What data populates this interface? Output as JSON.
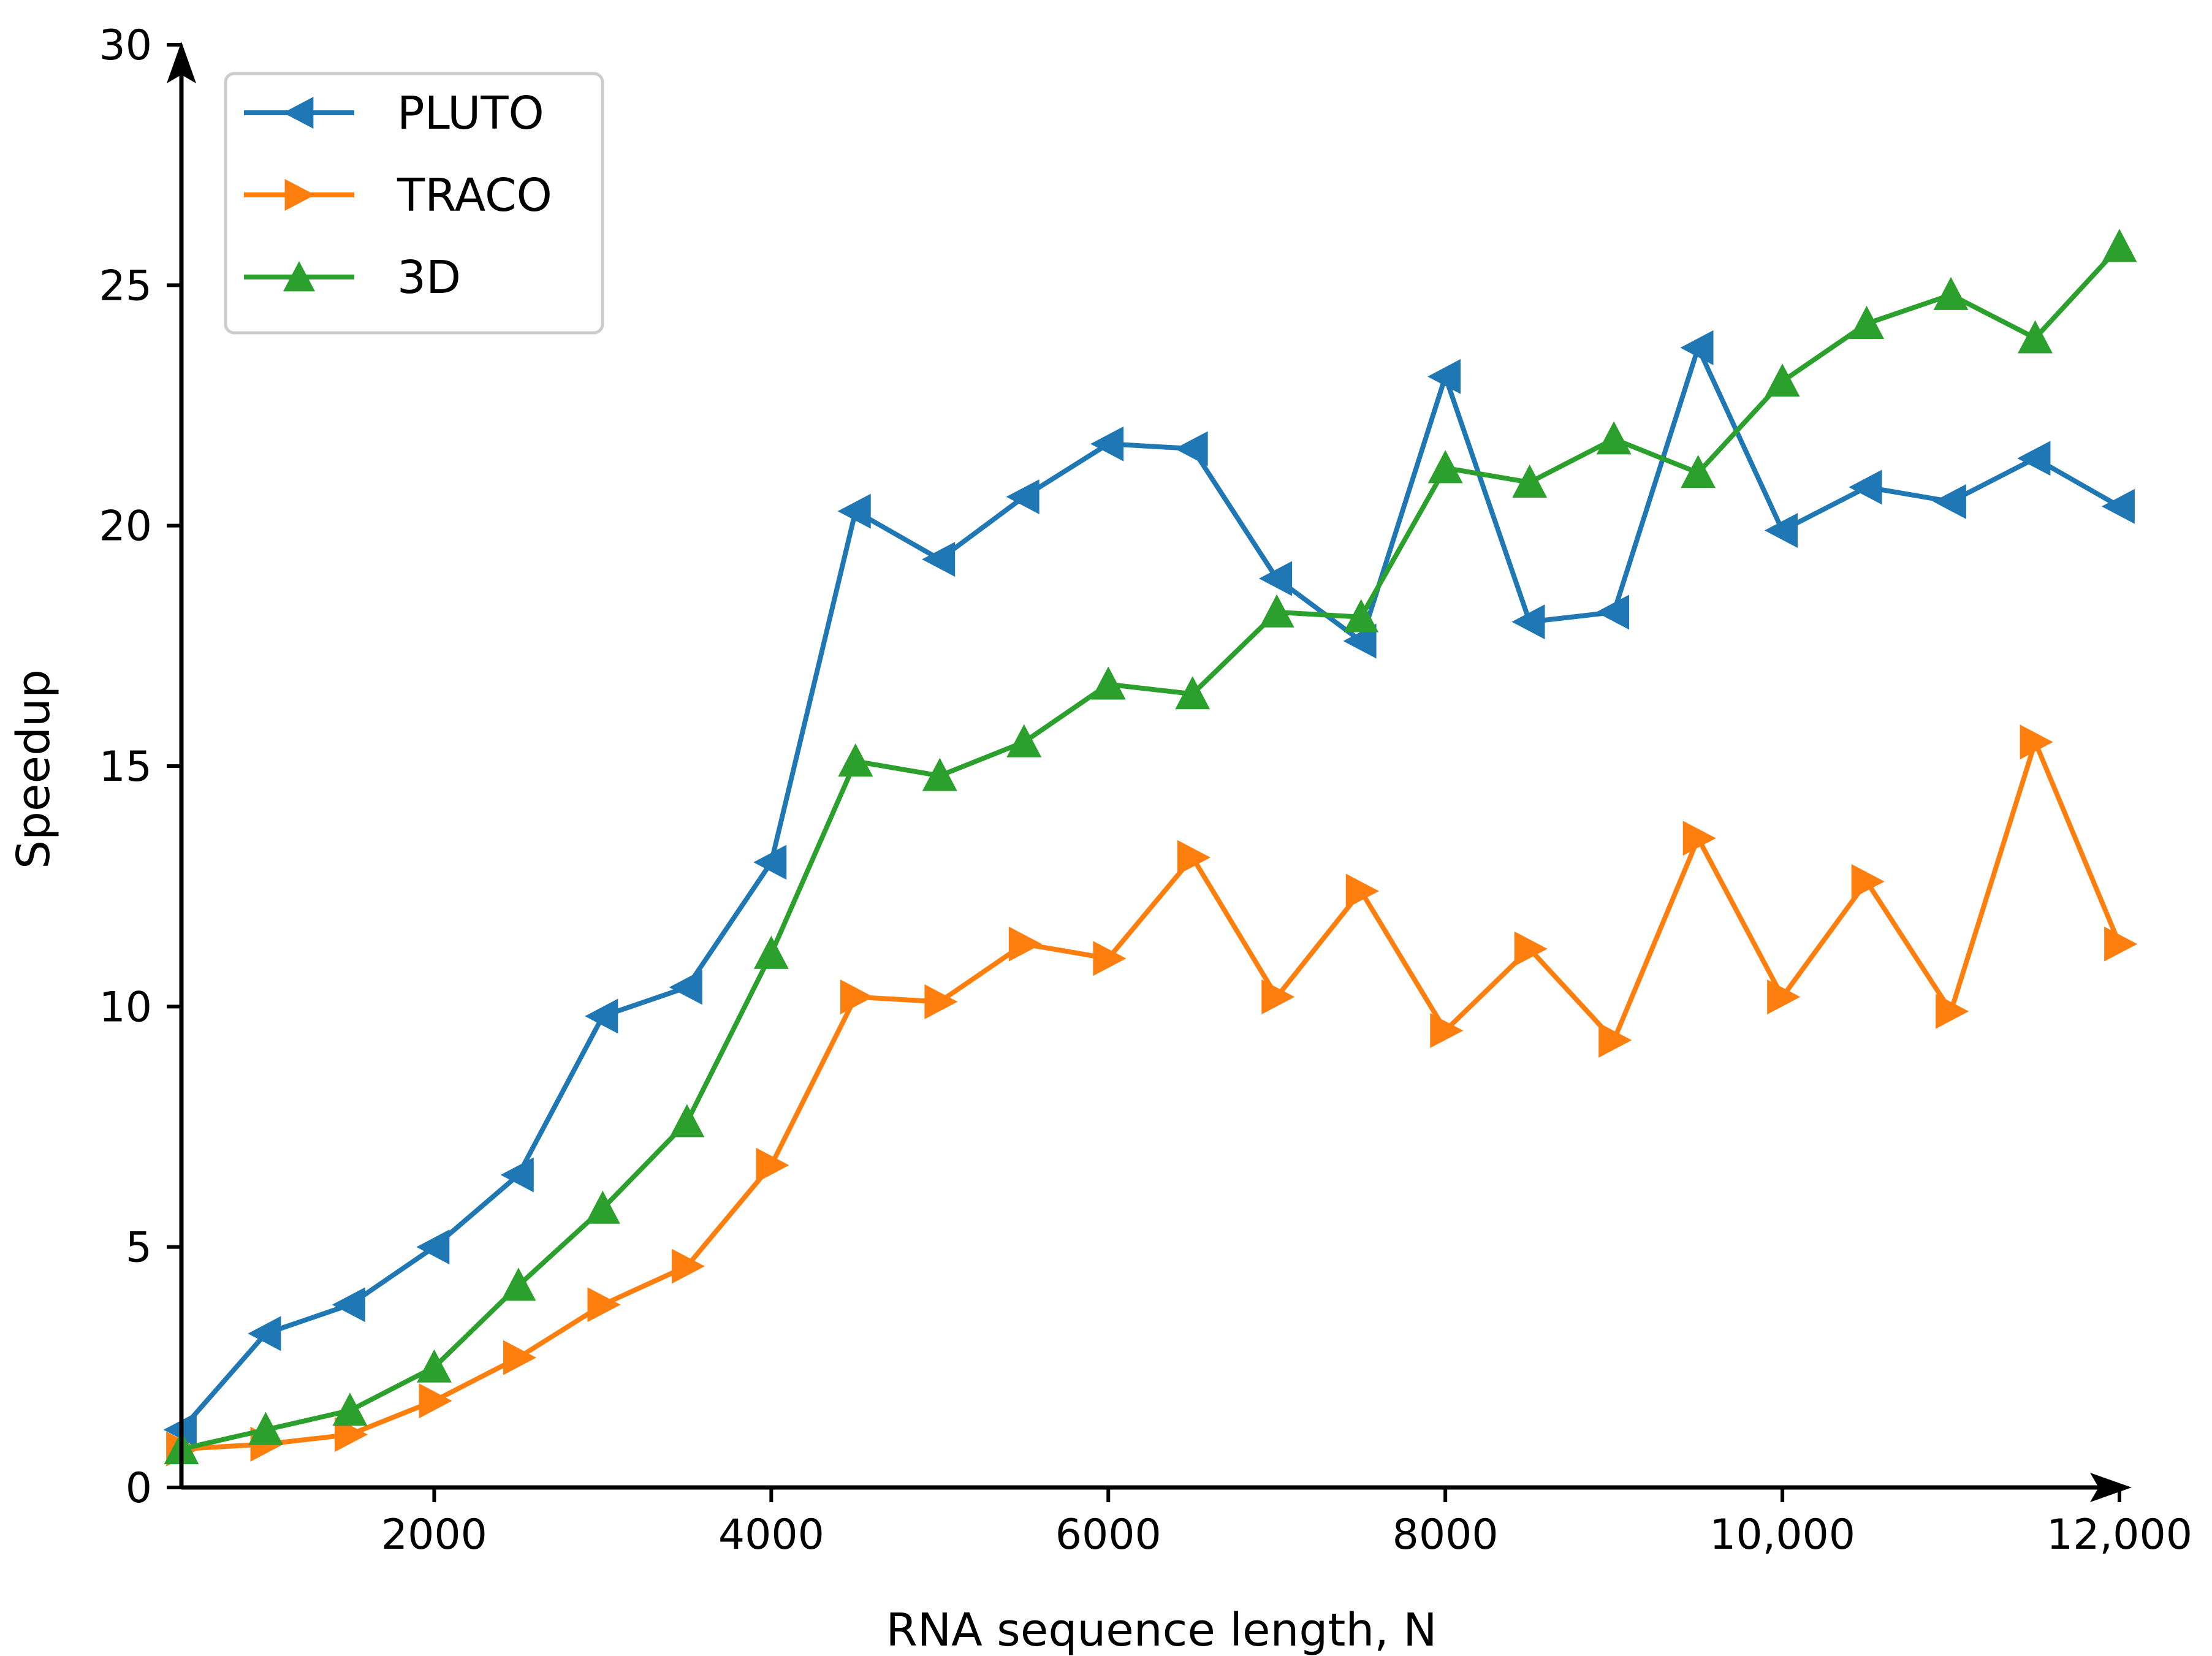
{
  "chart_data": {
    "type": "line",
    "title": "",
    "xlabel": "RNA sequence length, N",
    "ylabel": "Speedup",
    "xlim": [
      500,
      12000
    ],
    "ylim": [
      0,
      30
    ],
    "x_ticks": [
      2000,
      4000,
      6000,
      8000,
      10000,
      12000
    ],
    "x_tick_labels": [
      "2000",
      "4000",
      "6000",
      "8000",
      "10,000",
      "12,000"
    ],
    "y_ticks": [
      0,
      5,
      10,
      15,
      20,
      25,
      30
    ],
    "y_tick_labels": [
      "0",
      "5",
      "10",
      "15",
      "20",
      "25",
      "30"
    ],
    "grid": false,
    "legend_position": "top-left",
    "x": [
      500,
      1000,
      1500,
      2000,
      2500,
      3000,
      3500,
      4000,
      4500,
      5000,
      5500,
      6000,
      6500,
      7000,
      7500,
      8000,
      8500,
      9000,
      9500,
      10000,
      10500,
      11000,
      11500,
      12000
    ],
    "series": [
      {
        "name": "PLUTO",
        "color": "#1f77b4",
        "marker": "triangle-left",
        "values": [
          1.2,
          3.2,
          3.8,
          5.0,
          6.5,
          9.8,
          10.4,
          13.0,
          20.3,
          19.3,
          20.6,
          21.7,
          21.6,
          18.9,
          17.6,
          23.1,
          18.0,
          18.2,
          23.7,
          19.9,
          20.8,
          20.5,
          21.4,
          20.4
        ]
      },
      {
        "name": "TRACO",
        "color": "#ff7f0e",
        "marker": "triangle-right",
        "values": [
          0.8,
          0.9,
          1.1,
          1.8,
          2.7,
          3.8,
          4.6,
          6.7,
          10.2,
          10.1,
          11.3,
          11.0,
          13.1,
          10.2,
          12.4,
          9.5,
          11.2,
          9.3,
          13.5,
          10.2,
          12.6,
          9.9,
          15.5,
          11.3
        ]
      },
      {
        "name": "3D",
        "color": "#2ca02c",
        "marker": "triangle-up",
        "values": [
          0.8,
          1.2,
          1.6,
          2.5,
          4.2,
          5.8,
          7.6,
          11.1,
          15.1,
          14.8,
          15.5,
          16.7,
          16.5,
          18.2,
          18.1,
          21.2,
          20.9,
          21.8,
          21.1,
          23.0,
          24.2,
          24.8,
          23.9,
          25.8
        ]
      }
    ]
  }
}
